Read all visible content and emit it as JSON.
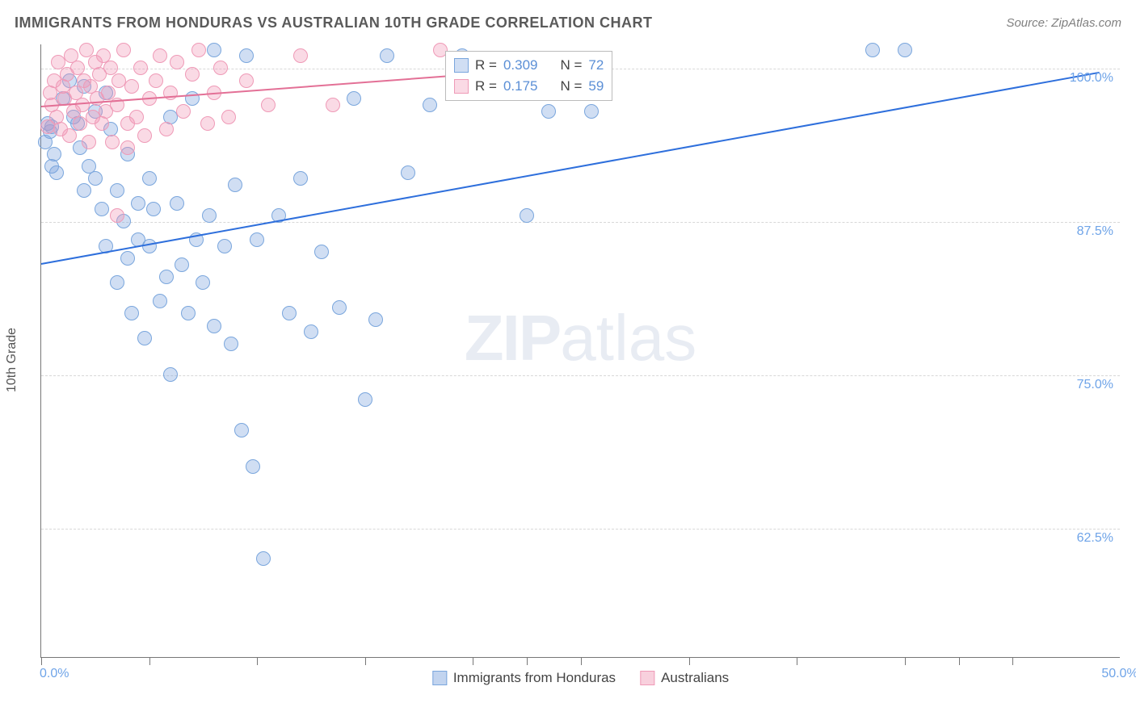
{
  "title": "IMMIGRANTS FROM HONDURAS VS AUSTRALIAN 10TH GRADE CORRELATION CHART",
  "source": "Source: ZipAtlas.com",
  "ylabel": "10th Grade",
  "watermark_bold": "ZIP",
  "watermark_rest": "atlas",
  "chart": {
    "type": "scatter",
    "x_domain": [
      0,
      50
    ],
    "y_domain": [
      52,
      102
    ],
    "x_tick_positions": [
      0,
      5,
      10,
      15,
      20,
      22.5,
      25,
      30,
      35,
      40,
      42.5,
      45
    ],
    "y_grid_values": [
      62.5,
      75.0,
      87.5,
      100.0
    ],
    "y_grid_labels": [
      "62.5%",
      "75.0%",
      "87.5%",
      "100.0%"
    ],
    "x_min_label": "0.0%",
    "x_max_label": "50.0%",
    "background_color": "#ffffff",
    "grid_color": "#d8d8d8",
    "axis_color": "#777777",
    "series": [
      {
        "name": "Immigrants from Honduras",
        "color_fill": "rgba(120,160,220,0.35)",
        "color_stroke": "#7aa6dd",
        "marker_radius": 9,
        "trend": {
          "x1": 0,
          "y1": 84.2,
          "x2": 49,
          "y2": 99.8,
          "color": "#2e6fdc",
          "width": 2
        },
        "legend": {
          "r_label": "R =",
          "r_value": "0.309",
          "n_label": "N =",
          "n_value": "72"
        },
        "points": [
          [
            0.3,
            95.5
          ],
          [
            0.4,
            94.8
          ],
          [
            0.5,
            95.2
          ],
          [
            0.6,
            93.0
          ],
          [
            0.5,
            92.0
          ],
          [
            0.2,
            94.0
          ],
          [
            0.7,
            91.5
          ],
          [
            1.0,
            97.5
          ],
          [
            1.3,
            99.0
          ],
          [
            1.5,
            96.0
          ],
          [
            1.7,
            95.5
          ],
          [
            1.8,
            93.5
          ],
          [
            2.0,
            98.5
          ],
          [
            2.0,
            90.0
          ],
          [
            2.2,
            92.0
          ],
          [
            2.5,
            96.5
          ],
          [
            2.5,
            91.0
          ],
          [
            2.8,
            88.5
          ],
          [
            3.0,
            98.0
          ],
          [
            3.0,
            85.5
          ],
          [
            3.2,
            95.0
          ],
          [
            3.5,
            90.0
          ],
          [
            3.5,
            82.5
          ],
          [
            3.8,
            87.5
          ],
          [
            4.0,
            93.0
          ],
          [
            4.0,
            84.5
          ],
          [
            4.2,
            80.0
          ],
          [
            4.5,
            89.0
          ],
          [
            4.5,
            86.0
          ],
          [
            4.8,
            78.0
          ],
          [
            5.0,
            91.0
          ],
          [
            5.0,
            85.5
          ],
          [
            5.2,
            88.5
          ],
          [
            5.5,
            81.0
          ],
          [
            5.8,
            83.0
          ],
          [
            6.0,
            96.0
          ],
          [
            6.0,
            75.0
          ],
          [
            6.3,
            89.0
          ],
          [
            6.5,
            84.0
          ],
          [
            6.8,
            80.0
          ],
          [
            7.0,
            97.5
          ],
          [
            7.2,
            86.0
          ],
          [
            7.5,
            82.5
          ],
          [
            7.8,
            88.0
          ],
          [
            8.0,
            101.5
          ],
          [
            8.0,
            79.0
          ],
          [
            8.5,
            85.5
          ],
          [
            8.8,
            77.5
          ],
          [
            9.0,
            90.5
          ],
          [
            9.3,
            70.5
          ],
          [
            9.5,
            101.0
          ],
          [
            9.8,
            67.5
          ],
          [
            10.0,
            86.0
          ],
          [
            10.3,
            60.0
          ],
          [
            11.0,
            88.0
          ],
          [
            11.5,
            80.0
          ],
          [
            12.0,
            91.0
          ],
          [
            12.5,
            78.5
          ],
          [
            13.0,
            85.0
          ],
          [
            13.8,
            80.5
          ],
          [
            14.5,
            97.5
          ],
          [
            15.0,
            73.0
          ],
          [
            15.5,
            79.5
          ],
          [
            16.0,
            101.0
          ],
          [
            17.0,
            91.5
          ],
          [
            18.0,
            97.0
          ],
          [
            19.5,
            101.0
          ],
          [
            22.5,
            88.0
          ],
          [
            23.5,
            96.5
          ],
          [
            25.5,
            96.5
          ],
          [
            38.5,
            101.5
          ],
          [
            40.0,
            101.5
          ]
        ]
      },
      {
        "name": "Australians",
        "color_fill": "rgba(240,150,180,0.35)",
        "color_stroke": "#ef9ab7",
        "marker_radius": 9,
        "trend": {
          "x1": 0,
          "y1": 97.0,
          "x2": 19,
          "y2": 99.5,
          "color": "#e37096",
          "width": 2
        },
        "legend": {
          "r_label": "R =",
          "r_value": "0.175",
          "n_label": "N =",
          "n_value": "59"
        },
        "points": [
          [
            0.3,
            95.2
          ],
          [
            0.4,
            98.0
          ],
          [
            0.5,
            97.0
          ],
          [
            0.6,
            99.0
          ],
          [
            0.7,
            96.0
          ],
          [
            0.8,
            100.5
          ],
          [
            0.9,
            95.0
          ],
          [
            1.0,
            98.5
          ],
          [
            1.1,
            97.5
          ],
          [
            1.2,
            99.5
          ],
          [
            1.3,
            94.5
          ],
          [
            1.4,
            101.0
          ],
          [
            1.5,
            96.5
          ],
          [
            1.6,
            98.0
          ],
          [
            1.7,
            100.0
          ],
          [
            1.8,
            95.5
          ],
          [
            1.9,
            97.0
          ],
          [
            2.0,
            99.0
          ],
          [
            2.1,
            101.5
          ],
          [
            2.2,
            94.0
          ],
          [
            2.3,
            98.5
          ],
          [
            2.4,
            96.0
          ],
          [
            2.5,
            100.5
          ],
          [
            2.6,
            97.5
          ],
          [
            2.7,
            99.5
          ],
          [
            2.8,
            95.5
          ],
          [
            2.9,
            101.0
          ],
          [
            3.0,
            96.5
          ],
          [
            3.1,
            98.0
          ],
          [
            3.2,
            100.0
          ],
          [
            3.3,
            94.0
          ],
          [
            3.5,
            97.0
          ],
          [
            3.6,
            99.0
          ],
          [
            3.8,
            101.5
          ],
          [
            4.0,
            95.5
          ],
          [
            4.2,
            98.5
          ],
          [
            4.4,
            96.0
          ],
          [
            4.6,
            100.0
          ],
          [
            4.8,
            94.5
          ],
          [
            5.0,
            97.5
          ],
          [
            5.3,
            99.0
          ],
          [
            5.5,
            101.0
          ],
          [
            5.8,
            95.0
          ],
          [
            6.0,
            98.0
          ],
          [
            6.3,
            100.5
          ],
          [
            6.6,
            96.5
          ],
          [
            7.0,
            99.5
          ],
          [
            7.3,
            101.5
          ],
          [
            7.7,
            95.5
          ],
          [
            8.0,
            98.0
          ],
          [
            8.3,
            100.0
          ],
          [
            8.7,
            96.0
          ],
          [
            3.5,
            88.0
          ],
          [
            4.0,
            93.5
          ],
          [
            9.5,
            99.0
          ],
          [
            10.5,
            97.0
          ],
          [
            12.0,
            101.0
          ],
          [
            13.5,
            97.0
          ],
          [
            18.5,
            101.5
          ]
        ]
      }
    ]
  },
  "bottom_legend": [
    {
      "label": "Immigrants from Honduras",
      "fill": "rgba(120,160,220,0.45)",
      "stroke": "#7aa6dd"
    },
    {
      "label": "Australians",
      "fill": "rgba(240,150,180,0.45)",
      "stroke": "#ef9ab7"
    }
  ]
}
